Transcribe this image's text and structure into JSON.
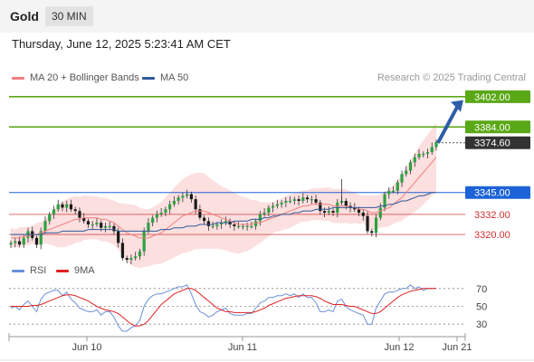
{
  "header": {
    "symbol": "Gold",
    "interval": "30 MIN"
  },
  "datetime": "Thursday, June 12, 2025 5:23:41 AM CET",
  "credit": "Research © 2025 Trading Central",
  "legend": [
    {
      "label": "MA 20 + Bollinger Bands",
      "color": "#f08080"
    },
    {
      "label": "MA 50",
      "color": "#2e5a9a"
    }
  ],
  "rsi_legend": [
    {
      "label": "RSI",
      "color": "#6a8fd8"
    },
    {
      "label": "9MA",
      "color": "#e02020"
    }
  ],
  "chart_data": [
    {
      "type": "line",
      "ylim": [
        3298,
        3410
      ],
      "x_ticks": [
        "Jun 10",
        "Jun 11",
        "Jun 12",
        "Jun 21"
      ],
      "levels": [
        {
          "value": 3402.0,
          "label": "3402.00",
          "kind": "resistance",
          "color": "#5aa816"
        },
        {
          "value": 3384.0,
          "label": "3384.00",
          "kind": "resistance",
          "color": "#5aa816"
        },
        {
          "value": 3374.6,
          "label": "3374.60",
          "kind": "last-price",
          "color": "#333333"
        },
        {
          "value": 3345.0,
          "label": "3345.00",
          "kind": "pivot",
          "color": "#1d63d8"
        },
        {
          "value": 3332.0,
          "label": "3332.00",
          "kind": "support",
          "color": "#d03030"
        },
        {
          "value": 3320.0,
          "label": "3320.00",
          "kind": "support",
          "color": "#d03030"
        }
      ],
      "series": [
        {
          "name": "Close",
          "values": [
            3315,
            3316,
            3314,
            3318,
            3322,
            3318,
            3314,
            3322,
            3328,
            3332,
            3335,
            3338,
            3336,
            3338,
            3335,
            3334,
            3330,
            3328,
            3326,
            3326,
            3327,
            3324,
            3325,
            3325,
            3322,
            3315,
            3306,
            3305,
            3306,
            3307,
            3310,
            3322,
            3327,
            3330,
            3332,
            3333,
            3335,
            3338,
            3340,
            3342,
            3343,
            3344,
            3341,
            3335,
            3330,
            3328,
            3325,
            3325,
            3326,
            3327,
            3328,
            3326,
            3325,
            3325,
            3325,
            3325,
            3325,
            3328,
            3332,
            3333,
            3336,
            3337,
            3338,
            3339,
            3340,
            3340,
            3341,
            3340,
            3342,
            3341,
            3341,
            3339,
            3334,
            3333,
            3334,
            3333,
            3339,
            3340,
            3337,
            3336,
            3335,
            3333,
            3331,
            3322,
            3321,
            3330,
            3336,
            3344,
            3346,
            3346,
            3351,
            3356,
            3358,
            3363,
            3366,
            3368,
            3368,
            3369,
            3372,
            3375
          ]
        },
        {
          "name": "MA 20",
          "values": [
            3318,
            3318,
            3318,
            3319,
            3319,
            3320,
            3320,
            3321,
            3322,
            3323,
            3324,
            3325,
            3326,
            3327,
            3328,
            3329,
            3329,
            3330,
            3330,
            3330,
            3330,
            3329,
            3329,
            3328,
            3327,
            3325,
            3323,
            3321,
            3320,
            3319,
            3318,
            3318,
            3318,
            3319,
            3320,
            3321,
            3323,
            3325,
            3327,
            3329,
            3331,
            3332,
            3333,
            3334,
            3334,
            3334,
            3333,
            3332,
            3331,
            3330,
            3329,
            3328,
            3327,
            3326,
            3326,
            3326,
            3326,
            3327,
            3327,
            3328,
            3329,
            3330,
            3331,
            3332,
            3333,
            3334,
            3335,
            3336,
            3337,
            3337,
            3338,
            3338,
            3338,
            3338,
            3338,
            3337,
            3337,
            3337,
            3337,
            3336,
            3336,
            3335,
            3335,
            3334,
            3333,
            3333,
            3334,
            3335,
            3336,
            3338,
            3340,
            3342,
            3345,
            3348,
            3351,
            3354,
            3357,
            3360,
            3363,
            3366
          ]
        },
        {
          "name": "MA 50",
          "values": [
            3320,
            3320,
            3320,
            3320,
            3320,
            3320,
            3320,
            3320,
            3321,
            3321,
            3321,
            3321,
            3322,
            3322,
            3322,
            3322,
            3322,
            3322,
            3323,
            3323,
            3323,
            3323,
            3323,
            3323,
            3323,
            3322,
            3322,
            3322,
            3322,
            3322,
            3322,
            3322,
            3322,
            3322,
            3322,
            3323,
            3323,
            3323,
            3324,
            3324,
            3324,
            3325,
            3325,
            3325,
            3326,
            3326,
            3326,
            3326,
            3327,
            3327,
            3327,
            3327,
            3328,
            3328,
            3328,
            3328,
            3329,
            3329,
            3329,
            3330,
            3330,
            3331,
            3331,
            3332,
            3332,
            3332,
            3333,
            3333,
            3334,
            3334,
            3334,
            3335,
            3335,
            3335,
            3335,
            3336,
            3336,
            3336,
            3336,
            3336,
            3336,
            3336,
            3336,
            3336,
            3336,
            3336,
            3337,
            3337,
            3338,
            3338,
            3339,
            3340,
            3340,
            3341,
            3342,
            3343,
            3343,
            3344,
            3345,
            3345
          ]
        }
      ]
    },
    {
      "type": "line",
      "ylim": [
        20,
        80
      ],
      "y_ticks": [
        70,
        50,
        30
      ],
      "series": [
        {
          "name": "RSI",
          "values": [
            48,
            50,
            46,
            52,
            56,
            50,
            44,
            58,
            64,
            66,
            68,
            68,
            62,
            66,
            58,
            54,
            48,
            46,
            44,
            44,
            46,
            40,
            44,
            44,
            38,
            28,
            22,
            22,
            26,
            28,
            34,
            50,
            58,
            62,
            64,
            64,
            66,
            68,
            70,
            72,
            72,
            74,
            64,
            52,
            44,
            42,
            38,
            40,
            44,
            46,
            48,
            42,
            40,
            40,
            40,
            42,
            42,
            48,
            54,
            56,
            60,
            60,
            62,
            62,
            64,
            62,
            64,
            60,
            64,
            60,
            60,
            54,
            44,
            44,
            46,
            44,
            56,
            58,
            50,
            46,
            44,
            42,
            40,
            30,
            30,
            48,
            56,
            64,
            66,
            66,
            68,
            70,
            70,
            74,
            70,
            72,
            68,
            70,
            70,
            70
          ]
        },
        {
          "name": "9MA",
          "values": [
            50,
            50,
            50,
            50,
            50,
            51,
            51,
            52,
            54,
            56,
            58,
            60,
            62,
            63,
            63,
            62,
            60,
            58,
            56,
            53,
            50,
            48,
            46,
            45,
            44,
            42,
            38,
            34,
            30,
            28,
            28,
            30,
            34,
            40,
            46,
            52,
            56,
            60,
            64,
            66,
            68,
            70,
            70,
            68,
            64,
            60,
            56,
            52,
            48,
            46,
            44,
            44,
            43,
            43,
            43,
            43,
            43,
            44,
            46,
            48,
            51,
            53,
            55,
            57,
            59,
            60,
            61,
            62,
            62,
            62,
            62,
            61,
            59,
            56,
            54,
            52,
            52,
            52,
            51,
            50,
            50,
            48,
            46,
            44,
            42,
            42,
            44,
            48,
            52,
            56,
            60,
            63,
            65,
            67,
            68,
            69,
            70,
            70,
            70,
            70
          ]
        }
      ]
    }
  ]
}
